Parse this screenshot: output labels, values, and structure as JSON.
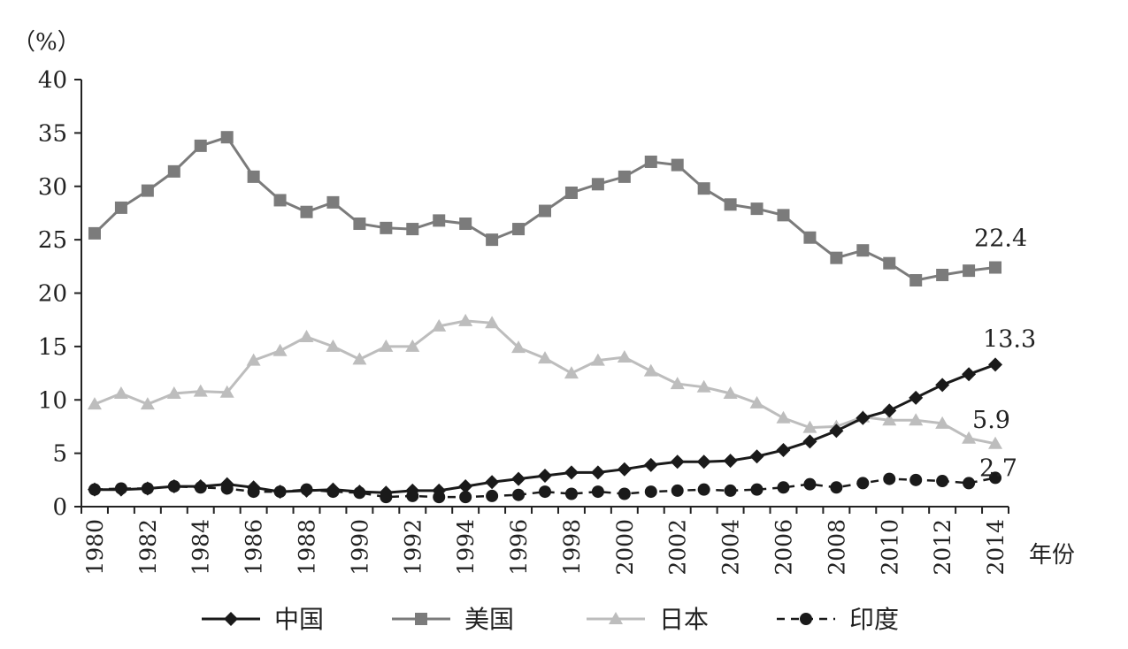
{
  "chart_data": {
    "type": "line",
    "title": "",
    "unit_label": "（%）",
    "xlabel": "年份",
    "ylabel": "",
    "ylim": [
      0,
      40
    ],
    "yticks": [
      0,
      5,
      10,
      15,
      20,
      25,
      30,
      35,
      40
    ],
    "xticks": [
      1980,
      1982,
      1984,
      1986,
      1988,
      1990,
      1992,
      1994,
      1996,
      1998,
      2000,
      2002,
      2004,
      2006,
      2008,
      2010,
      2012,
      2014
    ],
    "x": [
      1980,
      1981,
      1982,
      1983,
      1984,
      1985,
      1986,
      1987,
      1988,
      1989,
      1990,
      1991,
      1992,
      1993,
      1994,
      1995,
      1996,
      1997,
      1998,
      1999,
      2000,
      2001,
      2002,
      2003,
      2004,
      2005,
      2006,
      2007,
      2008,
      2009,
      2010,
      2011,
      2012,
      2013,
      2014
    ],
    "grid": false,
    "legend_position": "bottom",
    "series": [
      {
        "name": "中国",
        "color": "#1a1a1a",
        "marker": "diamond",
        "line_style": "solid",
        "end_label": "13.3",
        "values": [
          1.6,
          1.6,
          1.7,
          1.9,
          1.9,
          2.1,
          1.8,
          1.4,
          1.5,
          1.6,
          1.4,
          1.3,
          1.5,
          1.5,
          1.9,
          2.3,
          2.6,
          2.9,
          3.2,
          3.2,
          3.5,
          3.9,
          4.2,
          4.2,
          4.3,
          4.7,
          5.3,
          6.1,
          7.1,
          8.3,
          9.0,
          10.2,
          11.4,
          12.4,
          13.3
        ]
      },
      {
        "name": "美国",
        "color": "#7b7b7b",
        "marker": "square",
        "line_style": "solid",
        "end_label": "22.4",
        "values": [
          25.6,
          28.0,
          29.6,
          31.4,
          33.8,
          34.6,
          30.9,
          28.7,
          27.6,
          28.5,
          26.5,
          26.1,
          26.0,
          26.8,
          26.5,
          25.0,
          26.0,
          27.7,
          29.4,
          30.2,
          30.9,
          32.3,
          32.0,
          29.8,
          28.3,
          27.9,
          27.3,
          25.2,
          23.3,
          24.0,
          22.8,
          21.2,
          21.7,
          22.1,
          22.4
        ]
      },
      {
        "name": "日本",
        "color": "#bdbdbd",
        "marker": "triangle",
        "line_style": "solid",
        "end_label": "5.9",
        "values": [
          9.6,
          10.6,
          9.6,
          10.6,
          10.8,
          10.7,
          13.7,
          14.6,
          15.9,
          15.0,
          13.8,
          15.0,
          15.0,
          16.9,
          17.4,
          17.2,
          14.9,
          13.9,
          12.5,
          13.7,
          14.0,
          12.7,
          11.5,
          11.2,
          10.6,
          9.7,
          8.3,
          7.4,
          7.5,
          8.4,
          8.1,
          8.1,
          7.8,
          6.4,
          5.9
        ]
      },
      {
        "name": "印度",
        "color": "#1a1a1a",
        "marker": "circle",
        "line_style": "dashed",
        "end_label": "2.7",
        "values": [
          1.6,
          1.7,
          1.7,
          1.9,
          1.8,
          1.7,
          1.4,
          1.4,
          1.6,
          1.4,
          1.3,
          0.9,
          1.0,
          0.9,
          0.9,
          1.0,
          1.1,
          1.4,
          1.2,
          1.4,
          1.2,
          1.4,
          1.5,
          1.6,
          1.5,
          1.6,
          1.8,
          2.1,
          1.8,
          2.2,
          2.6,
          2.5,
          2.4,
          2.2,
          2.7
        ]
      }
    ]
  }
}
